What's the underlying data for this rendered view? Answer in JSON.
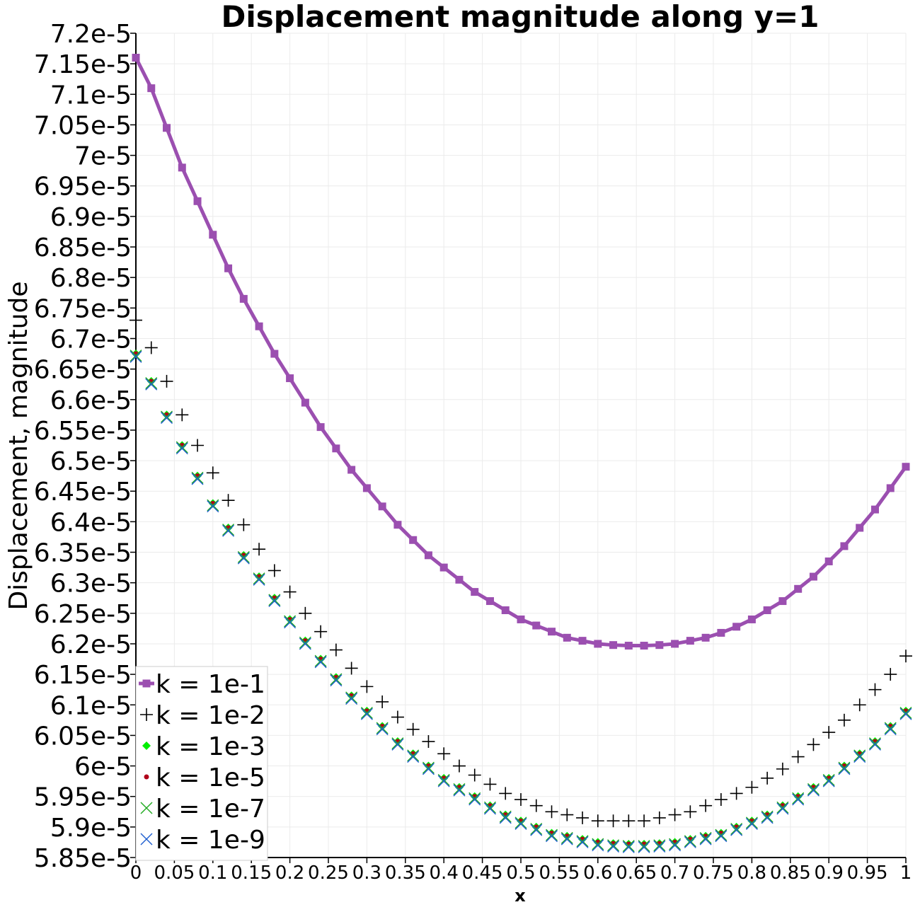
{
  "chart_data": {
    "type": "scatter",
    "title": "Displacement magnitude along y=1",
    "xlabel": "x",
    "ylabel": "Displacement, magnitude",
    "xlim": [
      0,
      1
    ],
    "ylim": [
      5.85e-05,
      7.2e-05
    ],
    "x_ticks": [
      "0",
      "0.05",
      "0.1",
      "0.15",
      "0.2",
      "0.25",
      "0.3",
      "0.35",
      "0.4",
      "0.45",
      "0.5",
      "0.55",
      "0.6",
      "0.65",
      "0.7",
      "0.75",
      "0.8",
      "0.85",
      "0.9",
      "0.95",
      "1"
    ],
    "y_ticks": [
      "7.2e-5",
      "7.15e-5",
      "7.1e-5",
      "7.05e-5",
      "7e-5",
      "6.95e-5",
      "6.9e-5",
      "6.85e-5",
      "6.8e-5",
      "6.75e-5",
      "6.7e-5",
      "6.65e-5",
      "6.6e-5",
      "6.55e-5",
      "6.5e-5",
      "6.45e-5",
      "6.4e-5",
      "6.35e-5",
      "6.3e-5",
      "6.25e-5",
      "6.2e-5",
      "6.15e-5",
      "6.1e-5",
      "6.05e-5",
      "6e-5",
      "5.95e-5",
      "5.9e-5",
      "5.85e-5"
    ],
    "grid": true,
    "legend_position": "bottom-left",
    "x": [
      0,
      0.02,
      0.04,
      0.06,
      0.08,
      0.1,
      0.12,
      0.14,
      0.16,
      0.18,
      0.2,
      0.22,
      0.24,
      0.26,
      0.28,
      0.3,
      0.32,
      0.34,
      0.36,
      0.38,
      0.4,
      0.42,
      0.44,
      0.46,
      0.48,
      0.5,
      0.52,
      0.54,
      0.56,
      0.58,
      0.6,
      0.62,
      0.64,
      0.66,
      0.68,
      0.7,
      0.72,
      0.74,
      0.76,
      0.78,
      0.8,
      0.82,
      0.84,
      0.86,
      0.88,
      0.9,
      0.92,
      0.94,
      0.96,
      0.98,
      1
    ],
    "series": [
      {
        "name": "k = 1e-1",
        "marker": "square-line",
        "color": "#9b4fb0",
        "values": [
          7.16e-05,
          7.11e-05,
          7.045e-05,
          6.98e-05,
          6.925e-05,
          6.87e-05,
          6.815e-05,
          6.765e-05,
          6.72e-05,
          6.675e-05,
          6.635e-05,
          6.595e-05,
          6.555e-05,
          6.52e-05,
          6.485e-05,
          6.455e-05,
          6.425e-05,
          6.395e-05,
          6.37e-05,
          6.345e-05,
          6.325e-05,
          6.305e-05,
          6.285e-05,
          6.27e-05,
          6.255e-05,
          6.24e-05,
          6.23e-05,
          6.22e-05,
          6.21e-05,
          6.205e-05,
          6.2e-05,
          6.198e-05,
          6.197e-05,
          6.197e-05,
          6.198e-05,
          6.2e-05,
          6.205e-05,
          6.21e-05,
          6.218e-05,
          6.228e-05,
          6.24e-05,
          6.255e-05,
          6.27e-05,
          6.29e-05,
          6.31e-05,
          6.335e-05,
          6.36e-05,
          6.39e-05,
          6.42e-05,
          6.455e-05,
          6.49e-05
        ]
      },
      {
        "name": "k = 1e-2",
        "marker": "plus",
        "color": "#000000",
        "values": [
          6.73e-05,
          6.685e-05,
          6.63e-05,
          6.575e-05,
          6.525e-05,
          6.48e-05,
          6.435e-05,
          6.395e-05,
          6.355e-05,
          6.32e-05,
          6.285e-05,
          6.25e-05,
          6.22e-05,
          6.19e-05,
          6.16e-05,
          6.13e-05,
          6.105e-05,
          6.08e-05,
          6.06e-05,
          6.04e-05,
          6.02e-05,
          6e-05,
          5.985e-05,
          5.97e-05,
          5.955e-05,
          5.945e-05,
          5.935e-05,
          5.925e-05,
          5.92e-05,
          5.915e-05,
          5.91e-05,
          5.91e-05,
          5.91e-05,
          5.91e-05,
          5.915e-05,
          5.92e-05,
          5.925e-05,
          5.935e-05,
          5.945e-05,
          5.955e-05,
          5.965e-05,
          5.98e-05,
          5.995e-05,
          6.015e-05,
          6.035e-05,
          6.055e-05,
          6.075e-05,
          6.1e-05,
          6.125e-05,
          6.15e-05,
          6.18e-05
        ]
      },
      {
        "name": "k = 1e-3",
        "marker": "diamond",
        "color": "#00ee00",
        "values": [
          6.675e-05,
          6.63e-05,
          6.575e-05,
          6.525e-05,
          6.475e-05,
          6.43e-05,
          6.39e-05,
          6.345e-05,
          6.31e-05,
          6.275e-05,
          6.24e-05,
          6.205e-05,
          6.175e-05,
          6.145e-05,
          6.115e-05,
          6.09e-05,
          6.065e-05,
          6.04e-05,
          6.02e-05,
          6e-05,
          5.98e-05,
          5.965e-05,
          5.95e-05,
          5.935e-05,
          5.92e-05,
          5.91e-05,
          5.9e-05,
          5.89e-05,
          5.885e-05,
          5.88e-05,
          5.875e-05,
          5.873e-05,
          5.872e-05,
          5.872e-05,
          5.873e-05,
          5.875e-05,
          5.88e-05,
          5.885e-05,
          5.89e-05,
          5.9e-05,
          5.91e-05,
          5.92e-05,
          5.935e-05,
          5.95e-05,
          5.965e-05,
          5.98e-05,
          6e-05,
          6.02e-05,
          6.04e-05,
          6.065e-05,
          6.09e-05
        ]
      },
      {
        "name": "k = 1e-5",
        "marker": "dot",
        "color": "#b0001a",
        "values": [
          6.675e-05,
          6.63e-05,
          6.575e-05,
          6.525e-05,
          6.475e-05,
          6.43e-05,
          6.39e-05,
          6.345e-05,
          6.31e-05,
          6.275e-05,
          6.24e-05,
          6.205e-05,
          6.175e-05,
          6.145e-05,
          6.115e-05,
          6.09e-05,
          6.065e-05,
          6.04e-05,
          6.02e-05,
          6e-05,
          5.98e-05,
          5.965e-05,
          5.95e-05,
          5.935e-05,
          5.92e-05,
          5.91e-05,
          5.9e-05,
          5.89e-05,
          5.885e-05,
          5.88e-05,
          5.875e-05,
          5.873e-05,
          5.872e-05,
          5.872e-05,
          5.873e-05,
          5.875e-05,
          5.88e-05,
          5.885e-05,
          5.89e-05,
          5.9e-05,
          5.91e-05,
          5.92e-05,
          5.935e-05,
          5.95e-05,
          5.965e-05,
          5.98e-05,
          6e-05,
          6.02e-05,
          6.04e-05,
          6.065e-05,
          6.09e-05
        ]
      },
      {
        "name": "k = 1e-7",
        "marker": "cross",
        "color": "#1faa1f",
        "values": [
          6.672e-05,
          6.627e-05,
          6.572e-05,
          6.522e-05,
          6.472e-05,
          6.427e-05,
          6.387e-05,
          6.342e-05,
          6.307e-05,
          6.272e-05,
          6.237e-05,
          6.202e-05,
          6.172e-05,
          6.142e-05,
          6.112e-05,
          6.087e-05,
          6.062e-05,
          6.037e-05,
          6.017e-05,
          5.997e-05,
          5.977e-05,
          5.962e-05,
          5.947e-05,
          5.932e-05,
          5.917e-05,
          5.907e-05,
          5.897e-05,
          5.887e-05,
          5.882e-05,
          5.877e-05,
          5.872e-05,
          5.87e-05,
          5.869e-05,
          5.869e-05,
          5.87e-05,
          5.872e-05,
          5.877e-05,
          5.882e-05,
          5.887e-05,
          5.897e-05,
          5.907e-05,
          5.917e-05,
          5.932e-05,
          5.947e-05,
          5.962e-05,
          5.977e-05,
          5.997e-05,
          6.017e-05,
          6.037e-05,
          6.062e-05,
          6.087e-05
        ]
      },
      {
        "name": "k = 1e-9",
        "marker": "cross",
        "color": "#1f5fd0",
        "values": [
          6.67e-05,
          6.625e-05,
          6.57e-05,
          6.52e-05,
          6.47e-05,
          6.425e-05,
          6.385e-05,
          6.34e-05,
          6.305e-05,
          6.27e-05,
          6.235e-05,
          6.2e-05,
          6.17e-05,
          6.14e-05,
          6.11e-05,
          6.085e-05,
          6.06e-05,
          6.035e-05,
          6.015e-05,
          5.995e-05,
          5.975e-05,
          5.96e-05,
          5.945e-05,
          5.93e-05,
          5.915e-05,
          5.905e-05,
          5.895e-05,
          5.885e-05,
          5.88e-05,
          5.875e-05,
          5.87e-05,
          5.868e-05,
          5.867e-05,
          5.867e-05,
          5.868e-05,
          5.87e-05,
          5.875e-05,
          5.88e-05,
          5.885e-05,
          5.895e-05,
          5.905e-05,
          5.915e-05,
          5.93e-05,
          5.945e-05,
          5.96e-05,
          5.975e-05,
          5.995e-05,
          6.015e-05,
          6.035e-05,
          6.06e-05,
          6.085e-05
        ]
      }
    ]
  }
}
